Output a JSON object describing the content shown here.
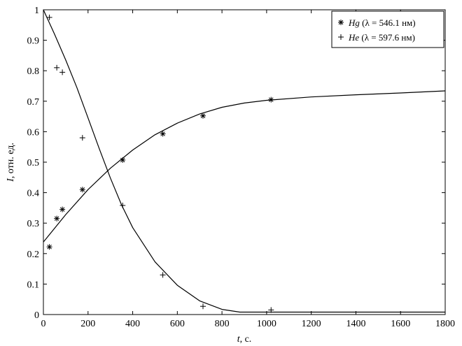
{
  "chart_data": {
    "type": "scatter",
    "title": "",
    "xlabel": {
      "var": "t",
      "rest": ", с."
    },
    "ylabel": {
      "var": "I",
      "rest": ", отн. ед."
    },
    "xlim": [
      0,
      1800
    ],
    "ylim": [
      0,
      1
    ],
    "xticks": [
      "0",
      "200",
      "400",
      "600",
      "800",
      "1000",
      "1200",
      "1400",
      "1600",
      "1800"
    ],
    "yticks": [
      "0",
      "0.1",
      "0.2",
      "0.3",
      "0.4",
      "0.5",
      "0.6",
      "0.7",
      "0.8",
      "0.9",
      "1"
    ],
    "grid": false,
    "legend_position": "top-right",
    "series": [
      {
        "name": "Hg",
        "legend_rest": " (λ = 546.1 нм)",
        "marker": "asterisk",
        "points": [
          [
            27,
            0.222
          ],
          [
            60,
            0.315
          ],
          [
            85,
            0.345
          ],
          [
            175,
            0.41
          ],
          [
            355,
            0.507
          ],
          [
            535,
            0.593
          ],
          [
            715,
            0.652
          ],
          [
            1020,
            0.705
          ]
        ],
        "fit": [
          [
            0,
            0.238
          ],
          [
            100,
            0.328
          ],
          [
            200,
            0.41
          ],
          [
            300,
            0.48
          ],
          [
            400,
            0.54
          ],
          [
            500,
            0.59
          ],
          [
            600,
            0.628
          ],
          [
            700,
            0.658
          ],
          [
            800,
            0.68
          ],
          [
            900,
            0.694
          ],
          [
            1000,
            0.703
          ],
          [
            1200,
            0.714
          ],
          [
            1400,
            0.721
          ],
          [
            1600,
            0.727
          ],
          [
            1800,
            0.734
          ]
        ]
      },
      {
        "name": "He",
        "legend_rest": " (λ = 597.6 нм)",
        "marker": "plus",
        "points": [
          [
            27,
            0.975
          ],
          [
            60,
            0.81
          ],
          [
            85,
            0.795
          ],
          [
            175,
            0.58
          ],
          [
            355,
            0.358
          ],
          [
            535,
            0.13
          ],
          [
            715,
            0.027
          ],
          [
            1020,
            0.015
          ]
        ],
        "fit": [
          [
            0,
            1.0
          ],
          [
            50,
            0.92
          ],
          [
            100,
            0.835
          ],
          [
            150,
            0.745
          ],
          [
            200,
            0.645
          ],
          [
            250,
            0.545
          ],
          [
            300,
            0.448
          ],
          [
            350,
            0.36
          ],
          [
            400,
            0.285
          ],
          [
            500,
            0.173
          ],
          [
            600,
            0.096
          ],
          [
            700,
            0.045
          ],
          [
            800,
            0.017
          ],
          [
            880,
            0.008
          ],
          [
            1000,
            0.008
          ],
          [
            1200,
            0.008
          ],
          [
            1500,
            0.008
          ],
          [
            1800,
            0.008
          ]
        ]
      }
    ]
  }
}
